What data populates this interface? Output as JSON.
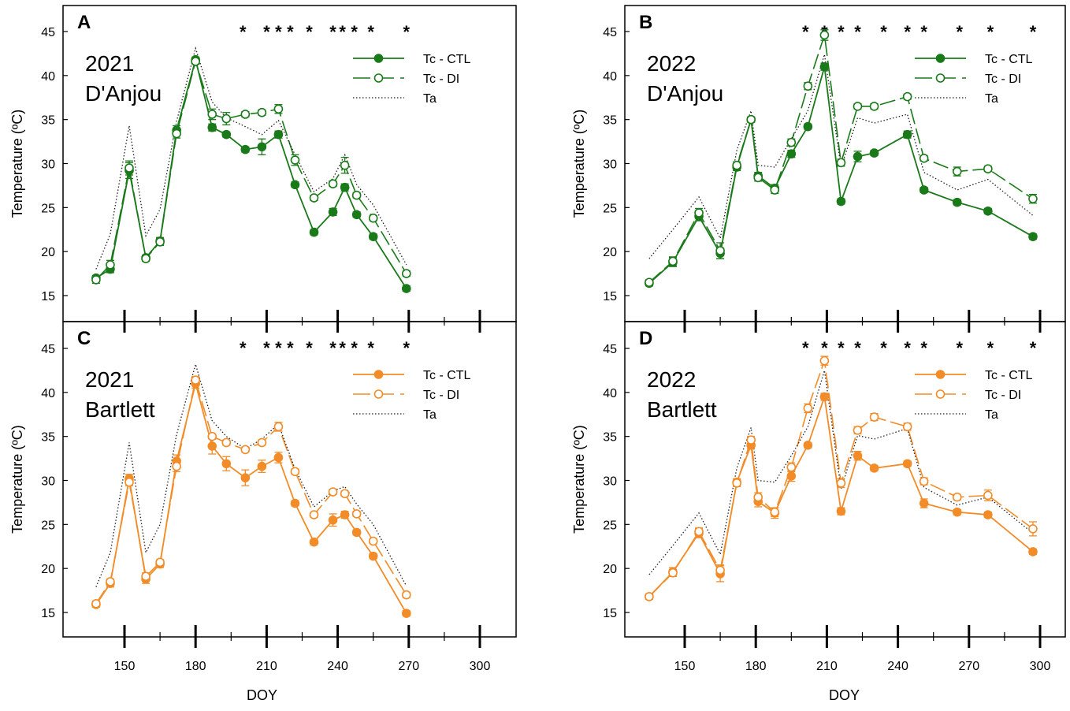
{
  "chart_data": [
    {
      "type": "line",
      "panel_label": "A",
      "year_label": "2021",
      "cultivar_label": "D'Anjou",
      "color": "#1a7a1a",
      "xlabel": "DOY",
      "ylabel": "Temperature (ºC)",
      "xlim": [
        125,
        305
      ],
      "ylim": [
        11,
        49
      ],
      "xticks": [
        150,
        180,
        210,
        240,
        270,
        300
      ],
      "yticks": [
        15,
        20,
        25,
        30,
        35,
        40,
        45
      ],
      "show_x_tick_labels": false,
      "legend": [
        "Tc - CTL",
        "Tc - DI",
        "Ta"
      ],
      "significance_mark": "*",
      "significant_doy": [
        200,
        210,
        215,
        220,
        228,
        238,
        242,
        247,
        254,
        269
      ],
      "series": [
        {
          "name": "Tc - CTL",
          "x": [
            138,
            144,
            152,
            159,
            165,
            172,
            180,
            187,
            193,
            201,
            208,
            215,
            222,
            230,
            238,
            243,
            248,
            255,
            269
          ],
          "y": [
            17.0,
            18.0,
            29.2,
            19.3,
            21.2,
            33.8,
            41.8,
            34.1,
            33.3,
            31.6,
            31.9,
            33.3,
            27.6,
            22.2,
            24.5,
            27.3,
            24.2,
            21.7,
            15.8
          ],
          "err": [
            0.3,
            0.4,
            0.9,
            0.3,
            0.4,
            0.5,
            0.3,
            0.4,
            0.3,
            0.3,
            0.9,
            0.4,
            0.3,
            0.3,
            0.4,
            0.4,
            0.3,
            0.3,
            0.3
          ]
        },
        {
          "name": "Tc - DI",
          "x": [
            138,
            144,
            152,
            159,
            165,
            172,
            180,
            187,
            193,
            201,
            208,
            215,
            222,
            230,
            238,
            243,
            248,
            255,
            269
          ],
          "y": [
            16.8,
            18.5,
            29.5,
            19.2,
            21.1,
            33.4,
            41.6,
            35.6,
            35.1,
            35.6,
            35.8,
            36.2,
            30.4,
            26.1,
            27.7,
            29.8,
            26.4,
            23.8,
            17.5
          ],
          "err": [
            0.4,
            0.5,
            0.8,
            0.3,
            0.4,
            0.5,
            0.3,
            0.6,
            0.7,
            0.3,
            0.3,
            0.5,
            0.6,
            0.3,
            0.3,
            0.9,
            0.3,
            0.3,
            0.3
          ]
        },
        {
          "name": "Ta",
          "x": [
            138,
            144,
            152,
            159,
            165,
            172,
            180,
            187,
            193,
            201,
            208,
            215,
            222,
            230,
            238,
            243,
            248,
            255,
            269
          ],
          "y": [
            18.0,
            22.0,
            34.3,
            21.8,
            24.8,
            34.8,
            43.1,
            37.0,
            35.2,
            34.2,
            33.3,
            34.9,
            31.0,
            26.8,
            28.3,
            31.0,
            27.6,
            25.3,
            18.5
          ]
        }
      ]
    },
    {
      "type": "line",
      "panel_label": "B",
      "year_label": "2022",
      "cultivar_label": "D'Anjou",
      "color": "#1a7a1a",
      "xlabel": "DOY",
      "ylabel": "Temperature (ºC)",
      "xlim": [
        125,
        305
      ],
      "ylim": [
        11,
        49
      ],
      "xticks": [
        150,
        180,
        210,
        240,
        270,
        300
      ],
      "yticks": [
        15,
        20,
        25,
        30,
        35,
        40,
        45
      ],
      "show_x_tick_labels": false,
      "legend": [
        "Tc - CTL",
        "Tc - DI",
        "Ta"
      ],
      "significance_mark": "*",
      "significant_doy": [
        201,
        209,
        216,
        223,
        234,
        244,
        251,
        266,
        279,
        297
      ],
      "series": [
        {
          "name": "Tc - CTL",
          "x": [
            135,
            145,
            156,
            165,
            172,
            178,
            181,
            188,
            195,
            202,
            209,
            216,
            223,
            230,
            244,
            251,
            265,
            278,
            297
          ],
          "y": [
            16.4,
            18.8,
            24.0,
            19.8,
            29.6,
            35.0,
            28.6,
            27.2,
            31.1,
            34.2,
            41.0,
            25.7,
            30.8,
            31.2,
            33.3,
            27.0,
            25.6,
            24.6,
            21.7
          ],
          "err": [
            0.3,
            0.5,
            0.5,
            0.6,
            0.4,
            0.3,
            0.4,
            0.4,
            0.4,
            0.3,
            0.4,
            0.3,
            0.6,
            0.3,
            0.4,
            0.3,
            0.3,
            0.3,
            0.3
          ]
        },
        {
          "name": "Tc - DI",
          "x": [
            135,
            145,
            156,
            165,
            172,
            178,
            181,
            188,
            195,
            202,
            209,
            216,
            223,
            230,
            244,
            251,
            265,
            278,
            297
          ],
          "y": [
            16.5,
            18.9,
            24.4,
            20.1,
            29.8,
            35.0,
            28.4,
            27.0,
            32.4,
            38.8,
            44.6,
            30.1,
            36.5,
            36.5,
            37.6,
            30.6,
            29.1,
            29.4,
            26.0
          ],
          "err": [
            0.3,
            0.5,
            0.5,
            0.9,
            0.4,
            0.3,
            0.4,
            0.4,
            0.4,
            0.4,
            0.6,
            0.4,
            0.3,
            0.3,
            0.3,
            0.3,
            0.5,
            0.3,
            0.5
          ]
        },
        {
          "name": "Ta",
          "x": [
            135,
            145,
            156,
            165,
            172,
            178,
            181,
            188,
            195,
            202,
            209,
            216,
            223,
            230,
            244,
            251,
            265,
            278,
            297
          ],
          "y": [
            19.2,
            22.5,
            26.2,
            21.5,
            31.5,
            36.0,
            29.8,
            29.6,
            32.8,
            36.0,
            42.4,
            29.6,
            35.2,
            34.6,
            35.6,
            29.0,
            27.0,
            28.2,
            24.1
          ]
        }
      ]
    },
    {
      "type": "line",
      "panel_label": "C",
      "year_label": "2021",
      "cultivar_label": "Bartlett",
      "color": "#f28c28",
      "xlabel": "DOY",
      "ylabel": "Temperature (ºC)",
      "xlim": [
        125,
        305
      ],
      "ylim": [
        11,
        49
      ],
      "xticks": [
        150,
        180,
        210,
        240,
        270,
        300
      ],
      "yticks": [
        15,
        20,
        25,
        30,
        35,
        40,
        45
      ],
      "show_x_tick_labels": true,
      "legend": [
        "Tc - CTL",
        "Tc - DI",
        "Ta"
      ],
      "significance_mark": "*",
      "significant_doy": [
        200,
        210,
        215,
        220,
        228,
        238,
        242,
        247,
        254,
        269
      ],
      "series": [
        {
          "name": "Tc - CTL",
          "x": [
            138,
            144,
            152,
            159,
            165,
            172,
            180,
            187,
            193,
            201,
            208,
            215,
            222,
            230,
            238,
            243,
            248,
            255,
            269
          ],
          "y": [
            15.9,
            18.3,
            30.2,
            18.8,
            20.5,
            32.2,
            41.0,
            33.9,
            31.9,
            30.3,
            31.6,
            32.6,
            27.4,
            23.0,
            25.5,
            26.1,
            24.1,
            21.4,
            14.9
          ],
          "err": [
            0.3,
            0.4,
            0.5,
            0.5,
            0.4,
            0.7,
            0.5,
            0.9,
            0.8,
            0.9,
            0.7,
            0.6,
            0.3,
            0.3,
            0.7,
            0.4,
            0.3,
            0.3,
            0.3
          ]
        },
        {
          "name": "Tc - DI",
          "x": [
            138,
            144,
            152,
            159,
            165,
            172,
            180,
            187,
            193,
            201,
            208,
            215,
            222,
            230,
            238,
            243,
            248,
            255,
            269
          ],
          "y": [
            16.0,
            18.5,
            29.8,
            19.1,
            20.7,
            31.6,
            41.4,
            35.0,
            34.3,
            33.5,
            34.3,
            36.1,
            31.0,
            26.1,
            28.7,
            28.5,
            26.2,
            23.1,
            17.0
          ],
          "err": [
            0.3,
            0.3,
            0.4,
            0.4,
            0.3,
            0.6,
            0.4,
            0.3,
            0.3,
            0.3,
            0.3,
            0.5,
            0.3,
            0.3,
            0.3,
            0.3,
            0.3,
            0.3,
            0.3
          ]
        },
        {
          "name": "Ta",
          "x": [
            138,
            144,
            152,
            159,
            165,
            172,
            180,
            187,
            193,
            201,
            208,
            215,
            222,
            230,
            238,
            243,
            248,
            255,
            269
          ],
          "y": [
            17.9,
            21.8,
            34.3,
            21.8,
            25.0,
            35.2,
            43.2,
            36.8,
            35.0,
            33.6,
            34.7,
            36.4,
            31.3,
            27.0,
            28.8,
            29.3,
            27.3,
            25.0,
            18.0
          ]
        }
      ]
    },
    {
      "type": "line",
      "panel_label": "D",
      "year_label": "2022",
      "cultivar_label": "Bartlett",
      "color": "#f28c28",
      "xlabel": "DOY",
      "ylabel": "Temperature (ºC)",
      "xlim": [
        125,
        305
      ],
      "ylim": [
        11,
        49
      ],
      "xticks": [
        150,
        180,
        210,
        240,
        270,
        300
      ],
      "yticks": [
        15,
        20,
        25,
        30,
        35,
        40,
        45
      ],
      "show_x_tick_labels": true,
      "legend": [
        "Tc - CTL",
        "Tc - DI",
        "Ta"
      ],
      "significance_mark": "*",
      "significant_doy": [
        201,
        209,
        216,
        223,
        234,
        244,
        251,
        266,
        279,
        297
      ],
      "series": [
        {
          "name": "Tc - CTL",
          "x": [
            135,
            145,
            156,
            165,
            172,
            178,
            181,
            188,
            195,
            202,
            209,
            216,
            223,
            230,
            244,
            251,
            265,
            278,
            297
          ],
          "y": [
            16.8,
            19.6,
            24.0,
            19.4,
            29.8,
            34.0,
            27.6,
            26.3,
            30.5,
            34.0,
            39.5,
            26.5,
            32.8,
            31.4,
            31.9,
            27.4,
            26.4,
            26.1,
            21.9
          ],
          "err": [
            0.3,
            0.5,
            0.5,
            0.9,
            0.4,
            0.4,
            0.6,
            0.6,
            0.6,
            0.3,
            0.4,
            0.4,
            0.5,
            0.3,
            0.3,
            0.5,
            0.3,
            0.3,
            0.3
          ]
        },
        {
          "name": "Tc - DI",
          "x": [
            135,
            145,
            156,
            165,
            172,
            178,
            181,
            188,
            195,
            202,
            209,
            216,
            223,
            230,
            244,
            251,
            265,
            278,
            297
          ],
          "y": [
            16.8,
            19.5,
            24.2,
            19.8,
            29.7,
            34.6,
            28.1,
            26.4,
            31.5,
            38.2,
            43.6,
            29.7,
            35.7,
            37.2,
            36.1,
            29.9,
            28.1,
            28.3,
            24.5
          ],
          "err": [
            0.3,
            0.4,
            0.4,
            0.6,
            0.4,
            0.4,
            0.5,
            0.5,
            0.5,
            0.5,
            0.5,
            0.5,
            0.4,
            0.4,
            0.4,
            0.4,
            0.3,
            0.6,
            0.8
          ]
        },
        {
          "name": "Ta",
          "x": [
            135,
            145,
            156,
            165,
            172,
            178,
            181,
            188,
            195,
            202,
            209,
            216,
            223,
            230,
            244,
            251,
            265,
            278,
            297
          ],
          "y": [
            19.3,
            22.6,
            26.3,
            21.6,
            31.4,
            36.0,
            30.0,
            29.8,
            32.8,
            36.1,
            42.5,
            29.0,
            35.1,
            34.7,
            35.9,
            29.2,
            27.2,
            28.1,
            24.0
          ]
        }
      ]
    }
  ]
}
